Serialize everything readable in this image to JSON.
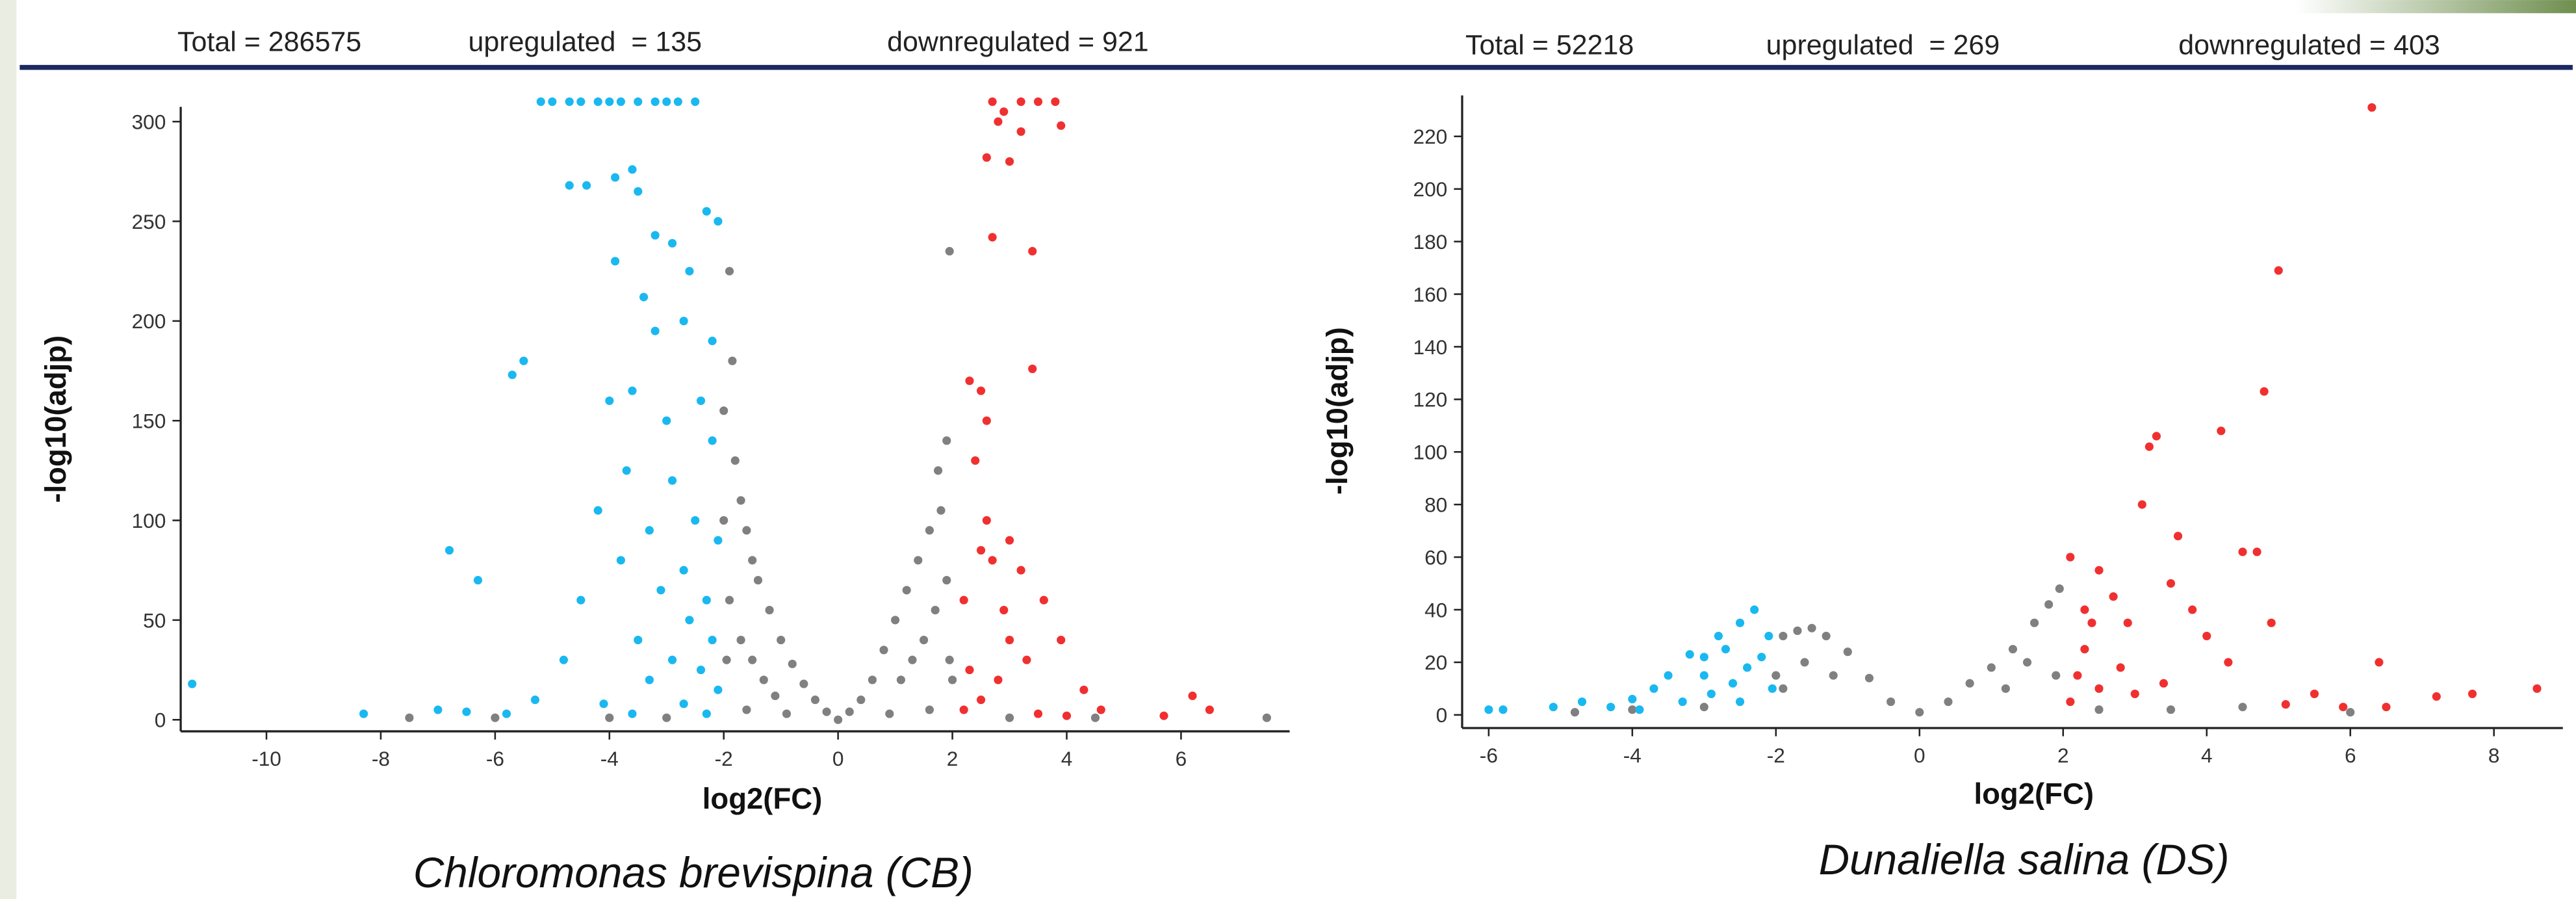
{
  "chart_data": [
    {
      "type": "scatter",
      "title": "Chloromonas brevispina (CB)",
      "stats": [
        "Total = 286575",
        "upregulated  = 135",
        "downregulated = 921"
      ],
      "xlabel": "log2(FC)",
      "ylabel": "-log10(adjp)",
      "xlim": [
        -11.5,
        7.9
      ],
      "ylim": [
        -5.8,
        307.4
      ],
      "xticks": [
        -10,
        -8,
        -6,
        -4,
        -2,
        0,
        2,
        4,
        6
      ],
      "yticks": [
        0,
        50,
        100,
        150,
        200,
        250,
        300
      ],
      "series": [
        {
          "color": "#808080",
          "x": [
            -2,
            -1.9,
            -1.8,
            -1.7,
            -1.6,
            -1.5,
            -1.4,
            -1.2,
            -1,
            -0.8,
            -0.6,
            -0.4,
            -0.2,
            0,
            0.2,
            0.4,
            0.6,
            0.8,
            1,
            1.2,
            1.4,
            1.6,
            1.8,
            1.9,
            1.95,
            2,
            -1.9,
            -1.7,
            -1.5,
            -1.3,
            -1.1,
            1.1,
            1.3,
            1.5,
            1.7,
            1.9,
            -2,
            -1.85,
            1.75,
            -7.5,
            -6,
            -4,
            -3,
            3,
            4.5,
            7.5,
            -1.6,
            1.6,
            -0.9,
            0.9,
            -1.95,
            1.95
          ],
          "values": [
            155,
            225,
            130,
            110,
            95,
            80,
            70,
            55,
            40,
            28,
            18,
            10,
            4,
            0,
            4,
            10,
            20,
            35,
            50,
            65,
            80,
            95,
            105,
            140,
            235,
            20,
            60,
            40,
            30,
            20,
            12,
            20,
            30,
            40,
            55,
            70,
            100,
            180,
            125,
            1,
            1,
            1,
            1,
            1,
            1,
            1,
            5,
            5,
            3,
            3,
            30,
            30
          ]
        },
        {
          "color": "#1ab8f0",
          "x": [
            -11.3,
            -8.3,
            -7,
            -6.8,
            -6.3,
            -5.7,
            -5.5,
            -5.2,
            -5,
            -4.7,
            -4.5,
            -4.2,
            -4,
            -3.8,
            -3.5,
            -3.2,
            -3,
            -2.8,
            -2.5,
            -4.7,
            -4.4,
            -3.9,
            -3.6,
            -3.5,
            -3.2,
            -2.9,
            -2.3,
            -2.1,
            -3.9,
            -3.4,
            -2.6,
            -3.2,
            -2.7,
            -2.2,
            -3.6,
            -4,
            -2.4,
            -3,
            -2.2,
            -3.7,
            -2.9,
            -4.2,
            -2.5,
            -3.3,
            -2.1,
            -3.8,
            -2.7,
            -4.5,
            -3.1,
            -2.3,
            -2.6,
            -2.2,
            -3.5,
            -4.8,
            -2.9,
            -2.4,
            -3.3,
            -2.1,
            -5.3,
            -4.1,
            -2.7,
            -6.5,
            -5.8,
            -3.6,
            -2.3
          ],
          "values": [
            18,
            3,
            5,
            85,
            70,
            173,
            180,
            310,
            310,
            310,
            310,
            310,
            310,
            310,
            310,
            310,
            310,
            310,
            310,
            268,
            268,
            272,
            276,
            265,
            243,
            239,
            255,
            250,
            230,
            212,
            225,
            195,
            200,
            190,
            165,
            160,
            160,
            150,
            140,
            125,
            120,
            105,
            100,
            95,
            90,
            80,
            75,
            60,
            65,
            60,
            50,
            40,
            40,
            30,
            30,
            25,
            20,
            15,
            10,
            8,
            8,
            4,
            3,
            3,
            3
          ]
        },
        {
          "color": "#f03030",
          "x": [
            2.2,
            2.5,
            2.3,
            2.8,
            2.2,
            2.5,
            2.7,
            3.2,
            2.6,
            3,
            2.4,
            2.6,
            2.3,
            2.5,
            3.4,
            2.7,
            3.4,
            2.6,
            2.8,
            3.2,
            3,
            2.7,
            3.2,
            3.5,
            3.8,
            3.9,
            2.9,
            3.6,
            3.9,
            4.3,
            4.6,
            5.7,
            6.2,
            6.5,
            3.5,
            4,
            3,
            3.3,
            2.9
          ],
          "values": [
            5,
            10,
            25,
            20,
            60,
            85,
            80,
            75,
            100,
            90,
            130,
            150,
            170,
            165,
            176,
            242,
            235,
            282,
            300,
            295,
            280,
            310,
            310,
            310,
            310,
            298,
            305,
            60,
            40,
            15,
            5,
            2,
            12,
            5,
            3,
            2,
            40,
            30,
            55
          ]
        }
      ]
    },
    {
      "type": "scatter",
      "title": "Dunaliella salina (DS)",
      "stats": [
        "Total = 52218",
        "upregulated  = 269",
        "downregulated = 403"
      ],
      "xlabel": "log2(FC)",
      "ylabel": "-log10(adjp)",
      "xlim": [
        -6.37,
        8.96
      ],
      "ylim": [
        -5,
        235.6
      ],
      "xticks": [
        -6,
        -4,
        -2,
        0,
        2,
        4,
        6,
        8
      ],
      "yticks": [
        0,
        20,
        40,
        60,
        80,
        100,
        120,
        140,
        160,
        180,
        200,
        220
      ],
      "series": [
        {
          "color": "#808080",
          "x": [
            -4.8,
            -4,
            -3,
            -2,
            -1.9,
            -1.7,
            -1.5,
            -1.3,
            -1,
            -0.7,
            -0.4,
            0,
            0.4,
            0.7,
            1,
            1.3,
            1.6,
            1.8,
            1.95,
            1.5,
            1.2,
            -1.2,
            -1.6,
            2.5,
            3.5,
            4.5,
            6,
            -1.9,
            1.9
          ],
          "values": [
            1,
            2,
            3,
            15,
            30,
            32,
            33,
            30,
            24,
            14,
            5,
            1,
            5,
            12,
            18,
            25,
            35,
            42,
            48,
            20,
            10,
            15,
            20,
            2,
            2,
            3,
            1,
            10,
            15
          ]
        },
        {
          "color": "#1ab8f0",
          "x": [
            -6,
            -5.8,
            -5.1,
            -4.7,
            -4.3,
            -4,
            -3.7,
            -3.5,
            -3.2,
            -3,
            -2.8,
            -2.5,
            -2.3,
            -2.1,
            -3.9,
            -3.3,
            -2.9,
            -2.6,
            -2.4,
            -2.2,
            -2.7,
            -2.05,
            -3,
            -2.5
          ],
          "values": [
            2,
            2,
            3,
            5,
            3,
            6,
            10,
            15,
            23,
            22,
            30,
            35,
            40,
            30,
            2,
            5,
            8,
            12,
            18,
            22,
            25,
            10,
            15,
            5
          ]
        },
        {
          "color": "#f03030",
          "x": [
            2.1,
            2.2,
            2.3,
            2.1,
            2.3,
            2.5,
            2.7,
            2.9,
            3.1,
            3.2,
            3.3,
            3.5,
            3.6,
            3.8,
            4,
            4.2,
            4.3,
            4.5,
            4.7,
            4.8,
            4.9,
            5,
            5.1,
            5.5,
            5.9,
            6.3,
            6.4,
            6.5,
            7.2,
            7.7,
            8.6,
            2.5,
            3,
            2.8,
            3.4,
            2.4
          ],
          "values": [
            5,
            15,
            25,
            60,
            40,
            55,
            45,
            35,
            80,
            102,
            106,
            50,
            68,
            40,
            30,
            108,
            20,
            62,
            62,
            123,
            35,
            169,
            4,
            8,
            3,
            231,
            20,
            3,
            7,
            8,
            10,
            10,
            8,
            18,
            12,
            35
          ]
        }
      ]
    }
  ]
}
